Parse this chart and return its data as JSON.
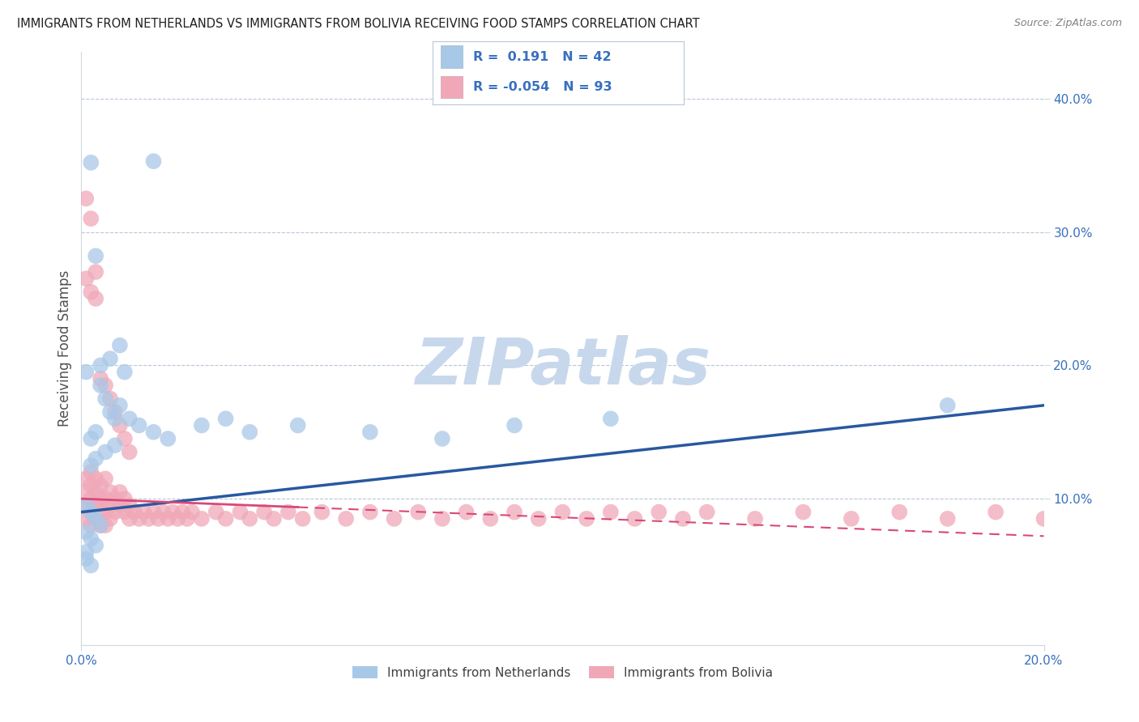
{
  "title": "IMMIGRANTS FROM NETHERLANDS VS IMMIGRANTS FROM BOLIVIA RECEIVING FOOD STAMPS CORRELATION CHART",
  "source": "Source: ZipAtlas.com",
  "ylabel": "Receiving Food Stamps",
  "xlim": [
    0.0,
    0.2
  ],
  "ylim": [
    -0.01,
    0.435
  ],
  "xtick_positions": [
    0.0,
    0.2
  ],
  "xtick_labels": [
    "0.0%",
    "20.0%"
  ],
  "ytick_positions": [
    0.1,
    0.2,
    0.3,
    0.4
  ],
  "ytick_labels": [
    "10.0%",
    "20.0%",
    "30.0%",
    "40.0%"
  ],
  "netherlands_R": 0.191,
  "netherlands_N": 42,
  "bolivia_R": -0.054,
  "bolivia_N": 93,
  "netherlands_color": "#a8c8e8",
  "bolivia_color": "#f0a8b8",
  "netherlands_line_color": "#2858a0",
  "bolivia_line_color": "#d84878",
  "background_color": "#ffffff",
  "grid_color": "#b8c8d8",
  "watermark": "ZIPatlas",
  "watermark_color": "#c8d8ec",
  "legend_label_netherlands": "Immigrants from Netherlands",
  "legend_label_bolivia": "Immigrants from Bolivia",
  "nl_trend": [
    0.09,
    0.17
  ],
  "bo_trend": [
    0.1,
    0.072
  ],
  "nl_x": [
    0.002,
    0.015,
    0.003,
    0.008,
    0.001,
    0.004,
    0.006,
    0.003,
    0.005,
    0.007,
    0.002,
    0.009,
    0.004,
    0.006,
    0.008,
    0.01,
    0.003,
    0.005,
    0.007,
    0.002,
    0.012,
    0.015,
    0.018,
    0.025,
    0.03,
    0.035,
    0.045,
    0.06,
    0.075,
    0.09,
    0.001,
    0.002,
    0.003,
    0.004,
    0.001,
    0.002,
    0.003,
    0.001,
    0.11,
    0.18,
    0.001,
    0.002
  ],
  "nl_y": [
    0.352,
    0.353,
    0.282,
    0.215,
    0.195,
    0.185,
    0.205,
    0.15,
    0.175,
    0.16,
    0.145,
    0.195,
    0.2,
    0.165,
    0.17,
    0.16,
    0.13,
    0.135,
    0.14,
    0.125,
    0.155,
    0.15,
    0.145,
    0.155,
    0.16,
    0.15,
    0.155,
    0.15,
    0.145,
    0.155,
    0.095,
    0.09,
    0.085,
    0.08,
    0.075,
    0.07,
    0.065,
    0.06,
    0.16,
    0.17,
    0.055,
    0.05
  ],
  "bo_x": [
    0.001,
    0.001,
    0.001,
    0.001,
    0.002,
    0.002,
    0.002,
    0.002,
    0.002,
    0.003,
    0.003,
    0.003,
    0.003,
    0.004,
    0.004,
    0.004,
    0.004,
    0.005,
    0.005,
    0.005,
    0.005,
    0.006,
    0.006,
    0.006,
    0.007,
    0.007,
    0.008,
    0.008,
    0.009,
    0.009,
    0.01,
    0.01,
    0.011,
    0.012,
    0.013,
    0.014,
    0.015,
    0.016,
    0.017,
    0.018,
    0.019,
    0.02,
    0.021,
    0.022,
    0.023,
    0.025,
    0.028,
    0.03,
    0.033,
    0.035,
    0.038,
    0.04,
    0.043,
    0.046,
    0.05,
    0.055,
    0.06,
    0.065,
    0.07,
    0.075,
    0.08,
    0.085,
    0.09,
    0.095,
    0.1,
    0.105,
    0.11,
    0.115,
    0.12,
    0.125,
    0.13,
    0.14,
    0.15,
    0.16,
    0.17,
    0.18,
    0.19,
    0.2,
    0.21,
    0.22,
    0.001,
    0.002,
    0.003,
    0.001,
    0.002,
    0.003,
    0.004,
    0.005,
    0.006,
    0.007,
    0.008,
    0.009,
    0.01
  ],
  "bo_y": [
    0.115,
    0.105,
    0.095,
    0.085,
    0.12,
    0.11,
    0.1,
    0.09,
    0.08,
    0.115,
    0.105,
    0.095,
    0.085,
    0.11,
    0.1,
    0.09,
    0.08,
    0.115,
    0.1,
    0.09,
    0.08,
    0.105,
    0.095,
    0.085,
    0.1,
    0.09,
    0.105,
    0.095,
    0.1,
    0.09,
    0.095,
    0.085,
    0.09,
    0.085,
    0.09,
    0.085,
    0.09,
    0.085,
    0.09,
    0.085,
    0.09,
    0.085,
    0.09,
    0.085,
    0.09,
    0.085,
    0.09,
    0.085,
    0.09,
    0.085,
    0.09,
    0.085,
    0.09,
    0.085,
    0.09,
    0.085,
    0.09,
    0.085,
    0.09,
    0.085,
    0.09,
    0.085,
    0.09,
    0.085,
    0.09,
    0.085,
    0.09,
    0.085,
    0.09,
    0.085,
    0.09,
    0.085,
    0.09,
    0.085,
    0.09,
    0.085,
    0.09,
    0.085,
    0.09,
    0.085,
    0.325,
    0.31,
    0.27,
    0.265,
    0.255,
    0.25,
    0.19,
    0.185,
    0.175,
    0.165,
    0.155,
    0.145,
    0.135
  ]
}
